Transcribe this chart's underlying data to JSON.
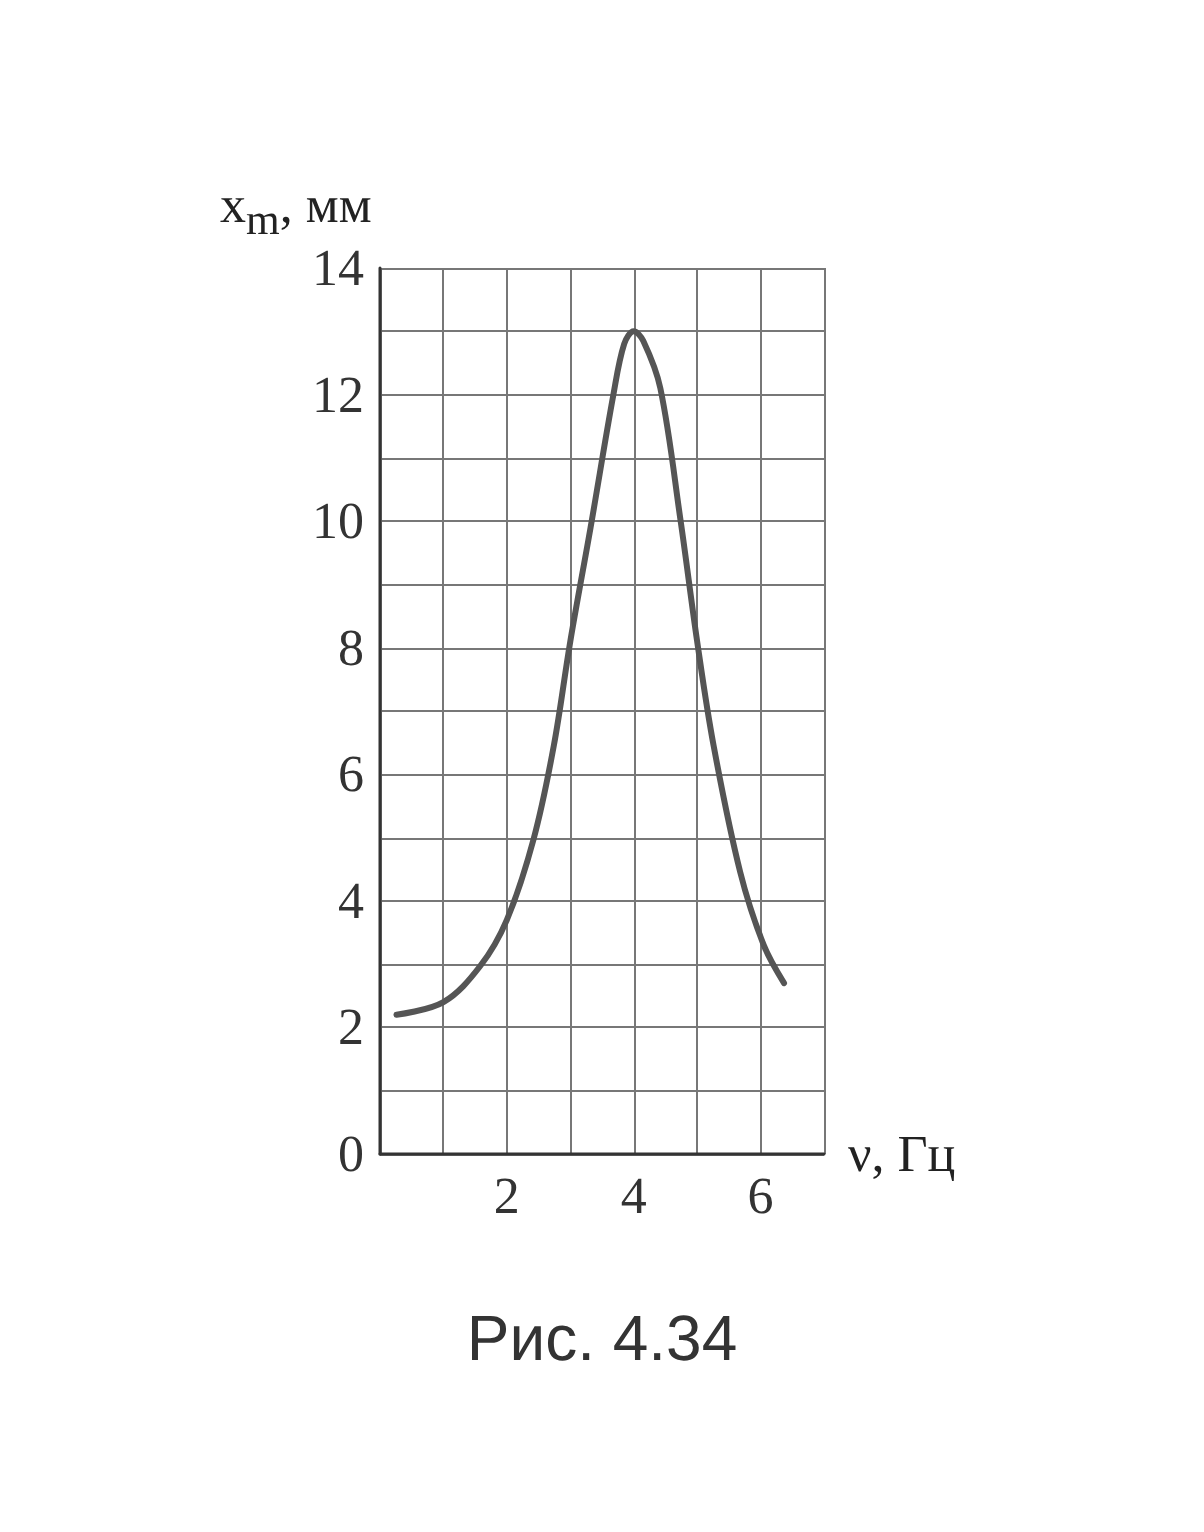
{
  "chart_data": {
    "type": "line",
    "xlabel": "ν, Гц",
    "ylabel": "x$_{m}$, мм",
    "annotations": [
      "Рис. 4.34"
    ],
    "series": [
      {
        "color": "#555555",
        "x": [
          0.26,
          1.0,
          1.58,
          2.0,
          2.42,
          2.74,
          3.0,
          3.32,
          3.68,
          3.85,
          4.0,
          4.15,
          4.42,
          4.74,
          5.0,
          5.26,
          5.68,
          6.05,
          6.37
        ],
        "values": [
          2.2,
          2.4,
          2.97,
          3.7,
          4.97,
          6.45,
          8.1,
          9.9,
          12.0,
          12.8,
          13.0,
          12.85,
          12.1,
          10.0,
          8.1,
          6.45,
          4.45,
          3.3,
          2.7
        ]
      }
    ],
    "xlim": [
      0,
      7
    ],
    "ylim": [
      0,
      14
    ],
    "xticks": [
      {
        "value": 0,
        "label": null
      },
      {
        "value": 1,
        "label": null
      },
      2,
      {
        "value": 3,
        "label": null
      },
      4,
      {
        "value": 5,
        "label": null
      },
      6,
      {
        "value": 7,
        "label": null
      }
    ],
    "yticks": [
      0,
      {
        "value": 1,
        "label": null
      },
      2,
      {
        "value": 3,
        "label": null
      },
      4,
      {
        "value": 5,
        "label": null
      },
      6,
      {
        "value": 7,
        "label": null
      },
      8,
      {
        "value": 9,
        "label": null
      },
      10,
      {
        "value": 11,
        "label": null
      },
      12,
      {
        "value": 13,
        "label": null
      },
      14
    ],
    "grid": true,
    "marker": "none",
    "line_style": "solid"
  }
}
